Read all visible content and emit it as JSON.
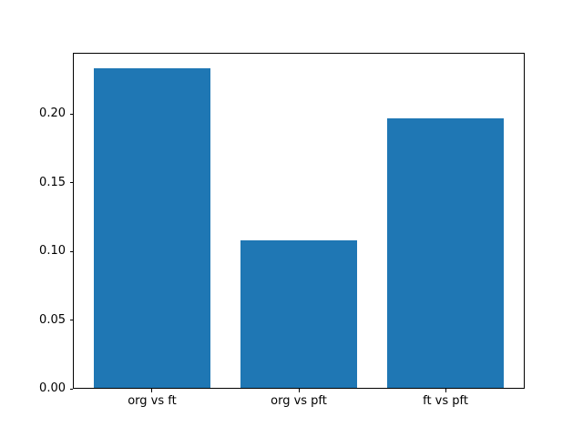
{
  "figure": {
    "background": "#ffffff"
  },
  "chart_data": {
    "type": "bar",
    "title": "",
    "xlabel": "",
    "ylabel": "",
    "categories": [
      "org vs ft",
      "org vs pft",
      "ft vs pft"
    ],
    "values": [
      0.233,
      0.108,
      0.197
    ],
    "x_positions": [
      0,
      1,
      2
    ],
    "bar_width": 0.8,
    "bar_color": "#1f77b4",
    "axis_color": "#000000",
    "text_color": "#000000",
    "xlim": [
      -0.54,
      2.54
    ],
    "ylim": [
      0,
      0.2447
    ],
    "yticks": [
      {
        "value": 0.0,
        "label": "0.00"
      },
      {
        "value": 0.05,
        "label": "0.05"
      },
      {
        "value": 0.1,
        "label": "0.10"
      },
      {
        "value": 0.15,
        "label": "0.15"
      },
      {
        "value": 0.2,
        "label": "0.20"
      }
    ],
    "grid": false,
    "legend": null
  }
}
